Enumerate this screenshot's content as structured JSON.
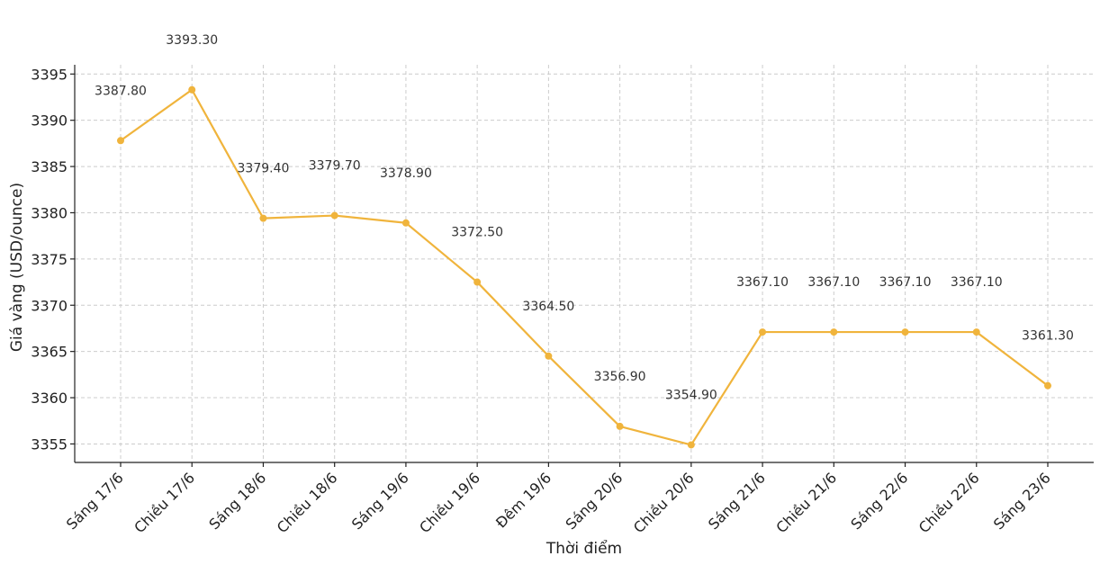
{
  "chart_data": {
    "type": "line",
    "title": "",
    "xlabel": "Thời điểm",
    "ylabel": "Giá vàng (USD/ounce)",
    "ylim": [
      3353,
      3396
    ],
    "yticks": [
      3355,
      3360,
      3365,
      3370,
      3375,
      3380,
      3385,
      3390,
      3395
    ],
    "grid": true,
    "line_color": "#f0b43c",
    "categories": [
      "Sáng 17/6",
      "Chiều 17/6",
      "Sáng 18/6",
      "Chiều 18/6",
      "Sáng 19/6",
      "Chiều 19/6",
      "Đêm 19/6",
      "Sáng 20/6",
      "Chiều 20/6",
      "Sáng 21/6",
      "Chiều 21/6",
      "Sáng 22/6",
      "Chiều 22/6",
      "Sáng 23/6"
    ],
    "values": [
      3387.8,
      3393.3,
      3379.4,
      3379.7,
      3378.9,
      3372.5,
      3364.5,
      3356.9,
      3354.9,
      3367.1,
      3367.1,
      3367.1,
      3367.1,
      3361.3
    ],
    "data_labels": [
      "3387.80",
      "3393.30",
      "3379.40",
      "3379.70",
      "3378.90",
      "3372.50",
      "3364.50",
      "3356.90",
      "3354.90",
      "3367.10",
      "3367.10",
      "3367.10",
      "3367.10",
      "3361.30"
    ]
  }
}
